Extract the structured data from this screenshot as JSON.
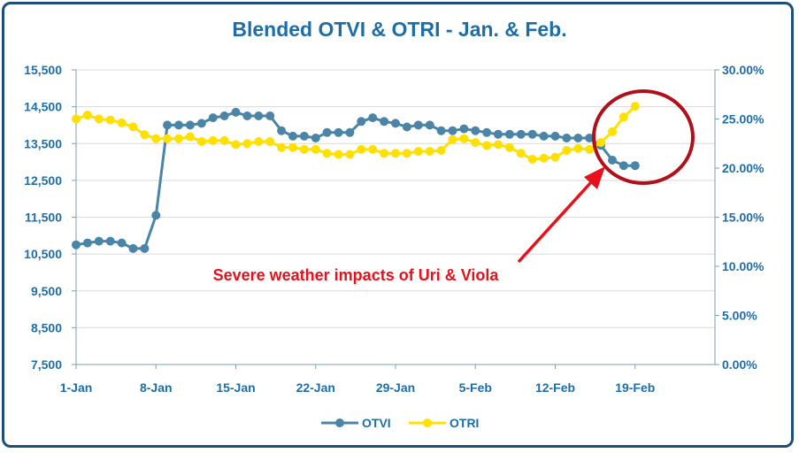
{
  "chart_data": {
    "type": "line",
    "title": "Blended OTVI & OTRI - Jan. & Feb.",
    "x_tick_labels": [
      "1-Jan",
      "8-Jan",
      "15-Jan",
      "22-Jan",
      "29-Jan",
      "5-Feb",
      "12-Feb",
      "19-Feb"
    ],
    "x_days": [
      1,
      2,
      3,
      4,
      5,
      6,
      7,
      8,
      9,
      10,
      11,
      12,
      13,
      14,
      15,
      16,
      17,
      18,
      19,
      20,
      21,
      22,
      23,
      24,
      25,
      26,
      27,
      28,
      29,
      30,
      31,
      32,
      33,
      34,
      35,
      36,
      37,
      38,
      39,
      40,
      41,
      42,
      43,
      44,
      45,
      46,
      47,
      48,
      49,
      50
    ],
    "xlim_days": [
      1,
      57
    ],
    "y_left": {
      "ticks": [
        "7,500",
        "8,500",
        "9,500",
        "10,500",
        "11,500",
        "12,500",
        "13,500",
        "14,500",
        "15,500"
      ],
      "ylim": [
        7500,
        15500
      ]
    },
    "y_right": {
      "ticks": [
        "0.00%",
        "5.00%",
        "10.00%",
        "15.00%",
        "20.00%",
        "25.00%",
        "30.00%"
      ],
      "ylim": [
        0,
        30
      ]
    },
    "series": [
      {
        "name": "OTVI",
        "axis": "left",
        "color": "#4a85a8",
        "values": [
          10750,
          10800,
          10850,
          10850,
          10800,
          10650,
          10650,
          11550,
          14000,
          14000,
          14000,
          14050,
          14200,
          14250,
          14350,
          14250,
          14250,
          14250,
          13850,
          13700,
          13700,
          13650,
          13800,
          13800,
          13800,
          14100,
          14200,
          14100,
          14050,
          13950,
          14000,
          14000,
          13850,
          13850,
          13900,
          13850,
          13800,
          13750,
          13750,
          13750,
          13750,
          13700,
          13700,
          13650,
          13650,
          13650,
          13450,
          13050,
          12900,
          12900
        ]
      },
      {
        "name": "OTRI",
        "axis": "right",
        "color": "#ffe000",
        "values": [
          25.0,
          25.4,
          25.0,
          24.9,
          24.6,
          24.2,
          23.4,
          23.0,
          23.0,
          23.0,
          23.2,
          22.7,
          22.8,
          22.8,
          22.4,
          22.5,
          22.7,
          22.7,
          22.1,
          22.1,
          21.9,
          21.9,
          21.5,
          21.4,
          21.4,
          21.9,
          21.9,
          21.5,
          21.5,
          21.5,
          21.7,
          21.7,
          21.8,
          22.9,
          23.0,
          22.6,
          22.3,
          22.4,
          22.1,
          21.5,
          20.9,
          21.0,
          21.1,
          21.8,
          22.0,
          21.9,
          22.6,
          23.7,
          25.2,
          26.3
        ]
      }
    ],
    "legend": {
      "position": "bottom-center",
      "entries": [
        "OTVI",
        "OTRI"
      ]
    },
    "annotation": {
      "text": "Severe weather impacts of Uri & Viola",
      "color": "#e8101c",
      "circle_color": "#b0101c",
      "arrow_color": "#e8101c"
    },
    "grid": "horizontal"
  }
}
